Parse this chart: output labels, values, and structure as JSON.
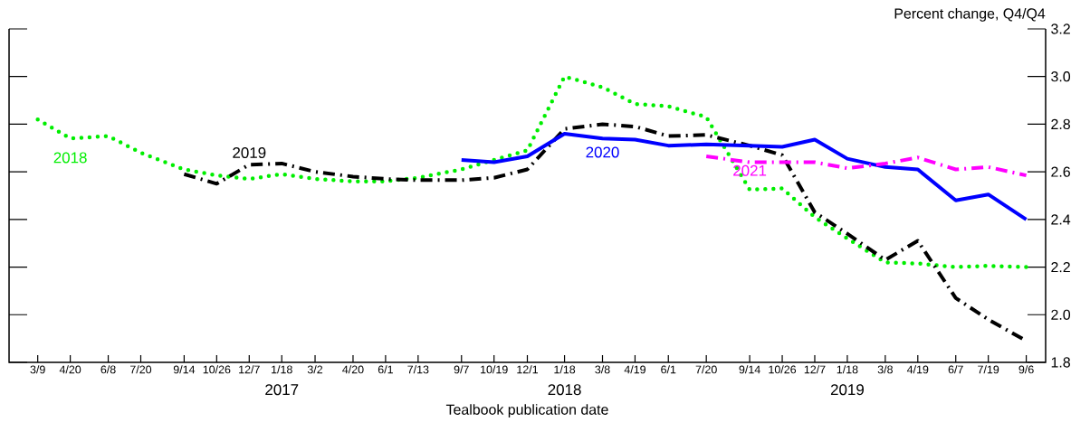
{
  "chart_data": {
    "type": "line",
    "xlabel": "Tealbook publication date",
    "ylabel": "Percent change, Q4/Q4",
    "x": [
      "2016-03-09",
      "2016-04-20",
      "2016-06-08",
      "2016-07-20",
      "2016-09-14",
      "2016-10-26",
      "2016-12-07",
      "2017-01-18",
      "2017-03-02",
      "2017-04-20",
      "2017-06-01",
      "2017-07-13",
      "2017-09-07",
      "2017-10-19",
      "2017-12-01",
      "2018-01-18",
      "2018-03-08",
      "2018-04-19",
      "2018-06-01",
      "2018-07-20",
      "2018-09-14",
      "2018-10-26",
      "2018-12-07",
      "2019-01-18",
      "2019-03-08",
      "2019-04-19",
      "2019-06-07",
      "2019-07-19",
      "2019-09-06"
    ],
    "series": [
      {
        "name": "2018",
        "color": "#00ee00",
        "line_style": "dotted",
        "values": [
          2.82,
          2.74,
          2.75,
          2.68,
          2.61,
          2.585,
          2.57,
          2.59,
          2.57,
          2.56,
          2.56,
          2.575,
          2.61,
          2.65,
          2.69,
          3.0,
          2.955,
          2.885,
          2.875,
          2.83,
          2.525,
          2.53,
          2.41,
          2.32,
          2.22,
          2.215,
          2.2,
          2.205,
          2.2
        ]
      },
      {
        "name": "2019",
        "color": "#000000",
        "line_style": "dashdot",
        "values": [
          null,
          null,
          null,
          null,
          2.59,
          2.55,
          2.63,
          2.635,
          2.6,
          2.58,
          2.57,
          2.565,
          2.565,
          2.575,
          2.61,
          2.78,
          2.8,
          2.79,
          2.75,
          2.755,
          2.71,
          2.67,
          2.43,
          2.34,
          2.23,
          2.31,
          2.07,
          1.98,
          1.89
        ]
      },
      {
        "name": "2020",
        "color": "#0000ff",
        "line_style": "solid",
        "values": [
          null,
          null,
          null,
          null,
          null,
          null,
          null,
          null,
          null,
          null,
          null,
          null,
          2.65,
          2.64,
          2.665,
          2.76,
          2.74,
          2.735,
          2.71,
          2.715,
          2.71,
          2.705,
          2.735,
          2.655,
          2.62,
          2.61,
          2.48,
          2.505,
          2.4
        ]
      },
      {
        "name": "2021",
        "color": "#ff00ff",
        "line_style": "dashdot",
        "values": [
          null,
          null,
          null,
          null,
          null,
          null,
          null,
          null,
          null,
          null,
          null,
          null,
          null,
          null,
          null,
          null,
          null,
          null,
          null,
          2.665,
          2.64,
          2.64,
          2.64,
          2.615,
          2.635,
          2.66,
          2.61,
          2.62,
          2.585
        ]
      }
    ],
    "xlim": [
      "2016-02-01",
      "2019-10-01"
    ],
    "xticks": [
      {
        "value": "2016-03-09",
        "label": "3/9"
      },
      {
        "value": "2016-04-20",
        "label": "4/20"
      },
      {
        "value": "2016-06-08",
        "label": "6/8"
      },
      {
        "value": "2016-07-20",
        "label": "7/20"
      },
      {
        "value": "2016-09-14",
        "label": "9/14"
      },
      {
        "value": "2016-10-26",
        "label": "10/26"
      },
      {
        "value": "2016-12-07",
        "label": "12/7"
      },
      {
        "value": "2017-01-18",
        "label": "1/18"
      },
      {
        "value": "2017-03-02",
        "label": "3/2"
      },
      {
        "value": "2017-04-20",
        "label": "4/20"
      },
      {
        "value": "2017-06-01",
        "label": "6/1"
      },
      {
        "value": "2017-07-13",
        "label": "7/13"
      },
      {
        "value": "2017-09-07",
        "label": "9/7"
      },
      {
        "value": "2017-10-19",
        "label": "10/19"
      },
      {
        "value": "2017-12-01",
        "label": "12/1"
      },
      {
        "value": "2018-01-18",
        "label": "1/18"
      },
      {
        "value": "2018-03-08",
        "label": "3/8"
      },
      {
        "value": "2018-04-19",
        "label": "4/19"
      },
      {
        "value": "2018-06-01",
        "label": "6/1"
      },
      {
        "value": "2018-07-20",
        "label": "7/20"
      },
      {
        "value": "2018-09-14",
        "label": "9/14"
      },
      {
        "value": "2018-10-26",
        "label": "10/26"
      },
      {
        "value": "2018-12-07",
        "label": "12/7"
      },
      {
        "value": "2019-01-18",
        "label": "1/18"
      },
      {
        "value": "2019-03-08",
        "label": "3/8"
      },
      {
        "value": "2019-04-19",
        "label": "4/19"
      },
      {
        "value": "2019-06-07",
        "label": "6/7"
      },
      {
        "value": "2019-07-19",
        "label": "7/19"
      },
      {
        "value": "2019-09-06",
        "label": "9/6"
      }
    ],
    "ylim": [
      1.8,
      3.2
    ],
    "yticks": [
      1.8,
      {
        "value": 2.0,
        "label": "2.0"
      },
      2.2,
      2.4,
      2.6,
      2.8,
      {
        "value": 3.0,
        "label": "3.0"
      },
      3.2
    ],
    "annotations": [
      "2017",
      "2018",
      "2019"
    ]
  }
}
